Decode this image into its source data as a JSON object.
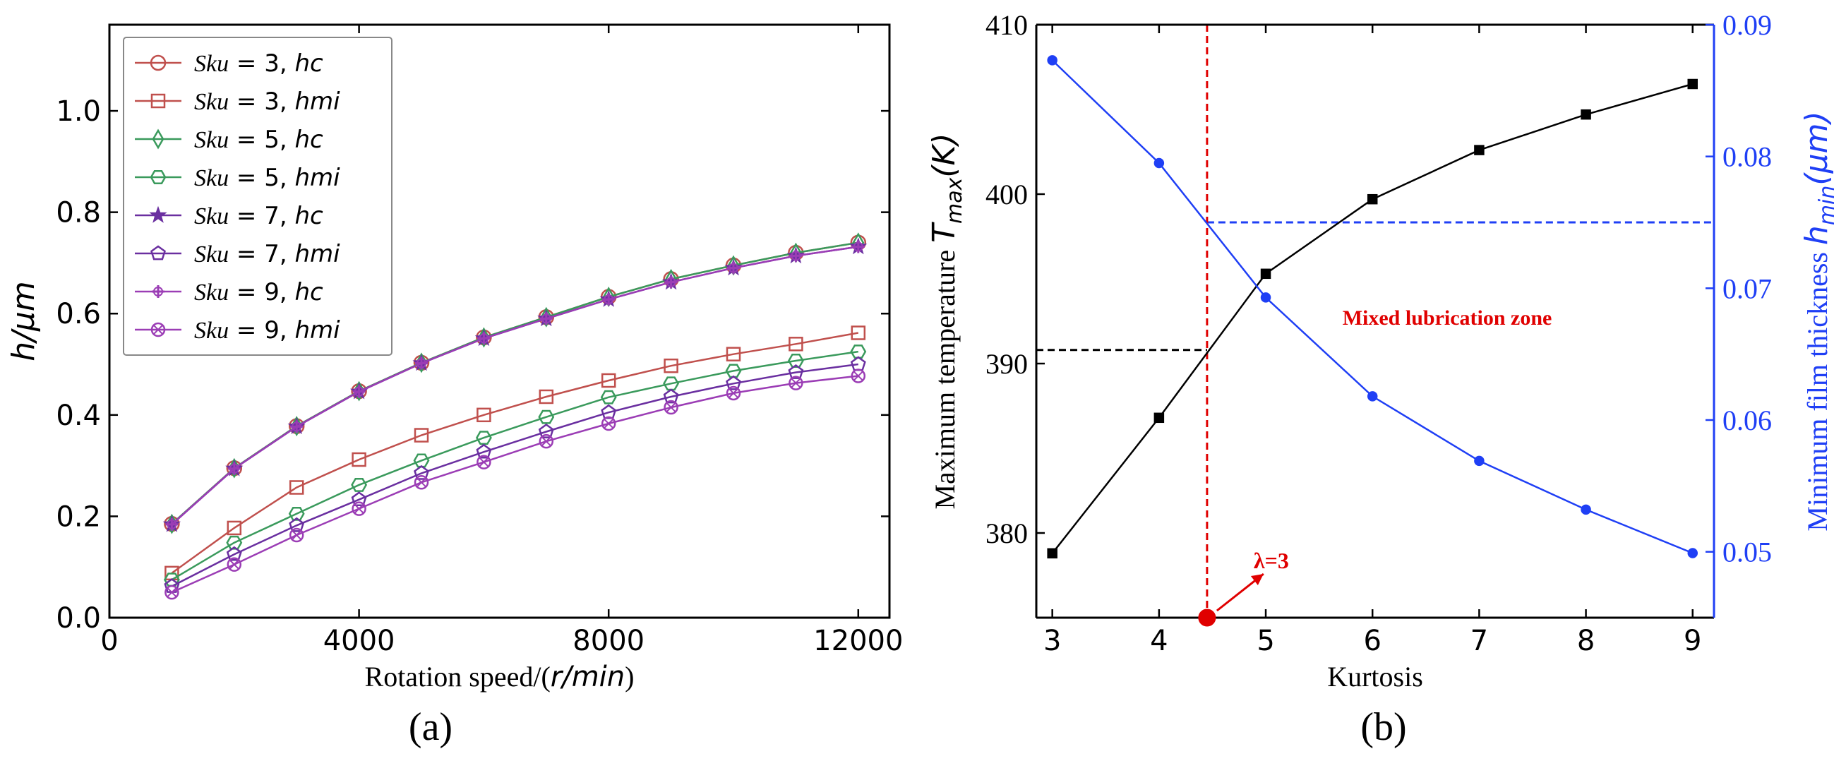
{
  "chart_data": [
    {
      "type": "line",
      "panel_label": "(a)",
      "ylabel": "h/μm",
      "ylabel_parts": {
        "main": "h/",
        "unit": "μm"
      },
      "xlabel": "Rotation speed/(r/min)",
      "xlabel_parts": {
        "main": "Rotation speed/(",
        "unit": "r/min",
        "close": ")"
      },
      "xlim": [
        0,
        12500
      ],
      "ylim": [
        0,
        1.17
      ],
      "xticks": [
        0,
        4000,
        8000,
        12000
      ],
      "xtick_labels": [
        "0",
        "4000",
        "8000",
        "12000"
      ],
      "yticks": [
        0.0,
        0.2,
        0.4,
        0.6,
        0.8,
        1.0
      ],
      "ytick_labels": [
        "0.0",
        "0.2",
        "0.4",
        "0.6",
        "0.8",
        "1.0"
      ],
      "legend_position": "top-left",
      "x": [
        1000,
        2000,
        3000,
        4000,
        5000,
        6000,
        7000,
        8000,
        9000,
        10000,
        11000,
        12000
      ],
      "series": [
        {
          "name": "Sku = 3, hc",
          "label": {
            "a": "Sku",
            "b": " = 3, ",
            "c": "hc"
          },
          "marker": "circle",
          "color": "#c0504d",
          "values": [
            0.185,
            0.295,
            0.378,
            0.447,
            0.503,
            0.553,
            0.593,
            0.633,
            0.668,
            0.695,
            0.72,
            0.74
          ]
        },
        {
          "name": "Sku = 3, hmi",
          "label": {
            "a": "Sku",
            "b": " = 3, ",
            "c": "hmi"
          },
          "marker": "square",
          "color": "#c0504d",
          "values": [
            0.088,
            0.177,
            0.257,
            0.312,
            0.36,
            0.4,
            0.436,
            0.468,
            0.497,
            0.52,
            0.54,
            0.562
          ]
        },
        {
          "name": "Sku = 5, hc",
          "label": {
            "a": "Sku",
            "b": " = 5, ",
            "c": "hc"
          },
          "marker": "diamond",
          "color": "#3a9a5c",
          "values": [
            0.185,
            0.295,
            0.378,
            0.447,
            0.503,
            0.553,
            0.593,
            0.633,
            0.668,
            0.695,
            0.72,
            0.74
          ]
        },
        {
          "name": "Sku = 5, hmi",
          "label": {
            "a": "Sku",
            "b": " = 5, ",
            "c": "hmi"
          },
          "marker": "hexagon",
          "color": "#3a9a5c",
          "values": [
            0.075,
            0.148,
            0.205,
            0.262,
            0.31,
            0.355,
            0.396,
            0.435,
            0.462,
            0.487,
            0.507,
            0.525
          ]
        },
        {
          "name": "Sku = 7, hc",
          "label": {
            "a": "Sku",
            "b": " = 7, ",
            "c": "hc"
          },
          "marker": "star",
          "color": "#6a2fa0",
          "values": [
            0.184,
            0.294,
            0.377,
            0.446,
            0.502,
            0.551,
            0.59,
            0.628,
            0.662,
            0.69,
            0.714,
            0.732
          ]
        },
        {
          "name": "Sku = 7, hmi",
          "label": {
            "a": "Sku",
            "b": " = 7, ",
            "c": "hmi"
          },
          "marker": "pentagon",
          "color": "#6a2fa0",
          "values": [
            0.062,
            0.125,
            0.182,
            0.233,
            0.285,
            0.327,
            0.367,
            0.405,
            0.436,
            0.462,
            0.484,
            0.5
          ]
        },
        {
          "name": "Sku = 9, hc",
          "label": {
            "a": "Sku",
            "b": " = 9, ",
            "c": "hc"
          },
          "marker": "plus",
          "color": "#9b3db5",
          "values": [
            0.184,
            0.294,
            0.377,
            0.446,
            0.502,
            0.551,
            0.59,
            0.628,
            0.662,
            0.69,
            0.714,
            0.732
          ]
        },
        {
          "name": "Sku = 9, hmi",
          "label": {
            "a": "Sku",
            "b": " = 9, ",
            "c": "hmi"
          },
          "marker": "xcircle",
          "color": "#9b3db5",
          "values": [
            0.05,
            0.105,
            0.163,
            0.215,
            0.267,
            0.307,
            0.348,
            0.383,
            0.415,
            0.443,
            0.463,
            0.477
          ]
        }
      ]
    },
    {
      "type": "line",
      "panel_label": "(b)",
      "xlabel": "Kurtosis",
      "ylabel_left": "Maximum temperature T_max(K)",
      "ylabel_left_parts": {
        "main": "Maximum temperature ",
        "sym": "T",
        "sub": "max",
        "unit": "(K)"
      },
      "ylabel_right": "Minimum film thickness h_min(μm)",
      "ylabel_right_parts": {
        "main": "Minimum film thickness ",
        "sym": "h",
        "sub": "min",
        "unit": "(μm)"
      },
      "xlim": [
        2.85,
        9.2
      ],
      "ylim_left": [
        375,
        410
      ],
      "ylim_right": [
        0.045,
        0.09
      ],
      "xticks": [
        3,
        4,
        5,
        6,
        7,
        8,
        9
      ],
      "xtick_labels": [
        "3",
        "4",
        "5",
        "6",
        "7",
        "8",
        "9"
      ],
      "yticks_left": [
        380,
        390,
        400,
        410
      ],
      "ytick_labels_left": [
        "380",
        "390",
        "400",
        "410"
      ],
      "yticks_right": [
        0.05,
        0.06,
        0.07,
        0.08,
        0.09
      ],
      "ytick_labels_right": [
        "0.05",
        "0.06",
        "0.07",
        "0.08",
        "0.09"
      ],
      "x": [
        3,
        4,
        5,
        6,
        7,
        8,
        9
      ],
      "series": [
        {
          "name": "Maximum temperature",
          "axis": "left",
          "marker": "square",
          "color": "#000000",
          "values": [
            378.8,
            386.8,
            395.3,
            399.7,
            402.6,
            404.7,
            406.5
          ]
        },
        {
          "name": "Minimum film thickness",
          "axis": "right",
          "marker": "circle",
          "color": "#1f3ff5",
          "values": [
            0.0873,
            0.0795,
            0.0693,
            0.0618,
            0.0569,
            0.0532,
            0.0499
          ]
        }
      ],
      "reference": {
        "kurtosis": 4.45,
        "temperature": 390.8,
        "film_thickness": 0.075,
        "temperature_line_color": "#000000",
        "film_line_color": "#1f3ff5",
        "vertical_line_color": "#e00000"
      },
      "annotations": {
        "zone_label": "Mixed lubrication zone",
        "lambda_label": "λ=3",
        "color": "#e00000"
      }
    }
  ]
}
